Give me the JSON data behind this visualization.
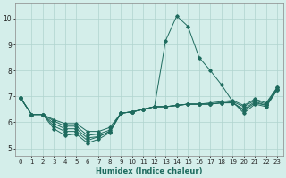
{
  "xlabel": "Humidex (Indice chaleur)",
  "background_color": "#d4eeea",
  "grid_color": "#afd4ce",
  "line_color": "#1e6b5e",
  "xlim": [
    -0.5,
    23.5
  ],
  "ylim": [
    4.7,
    10.6
  ],
  "yticks": [
    5,
    6,
    7,
    8,
    9,
    10
  ],
  "xticks": [
    0,
    1,
    2,
    3,
    4,
    5,
    6,
    7,
    8,
    9,
    10,
    11,
    12,
    13,
    14,
    15,
    16,
    17,
    18,
    19,
    20,
    21,
    22,
    23
  ],
  "series": [
    [
      6.95,
      6.3,
      6.3,
      5.75,
      5.5,
      5.55,
      5.2,
      5.35,
      5.6,
      6.35,
      6.4,
      6.5,
      6.6,
      9.15,
      10.1,
      9.7,
      8.5,
      8.0,
      7.45,
      6.8,
      6.35,
      6.7,
      6.6,
      7.25
    ],
    [
      6.95,
      6.3,
      6.3,
      5.85,
      5.65,
      5.65,
      5.3,
      5.45,
      5.65,
      6.35,
      6.4,
      6.5,
      6.6,
      6.6,
      6.65,
      6.7,
      6.7,
      6.7,
      6.75,
      6.75,
      6.45,
      6.75,
      6.65,
      7.25
    ],
    [
      6.95,
      6.3,
      6.3,
      5.95,
      5.75,
      5.75,
      5.4,
      5.45,
      5.65,
      6.35,
      6.4,
      6.5,
      6.6,
      6.6,
      6.65,
      6.7,
      6.7,
      6.7,
      6.75,
      6.75,
      6.5,
      6.8,
      6.65,
      7.3
    ],
    [
      6.95,
      6.3,
      6.3,
      6.05,
      5.85,
      5.85,
      5.5,
      5.55,
      5.7,
      6.35,
      6.4,
      6.5,
      6.6,
      6.6,
      6.65,
      6.7,
      6.7,
      6.7,
      6.75,
      6.8,
      6.6,
      6.85,
      6.7,
      7.35
    ],
    [
      6.95,
      6.3,
      6.3,
      6.1,
      5.95,
      5.95,
      5.65,
      5.65,
      5.8,
      6.35,
      6.4,
      6.5,
      6.6,
      6.6,
      6.65,
      6.7,
      6.7,
      6.75,
      6.8,
      6.85,
      6.65,
      6.9,
      6.75,
      7.35
    ]
  ]
}
